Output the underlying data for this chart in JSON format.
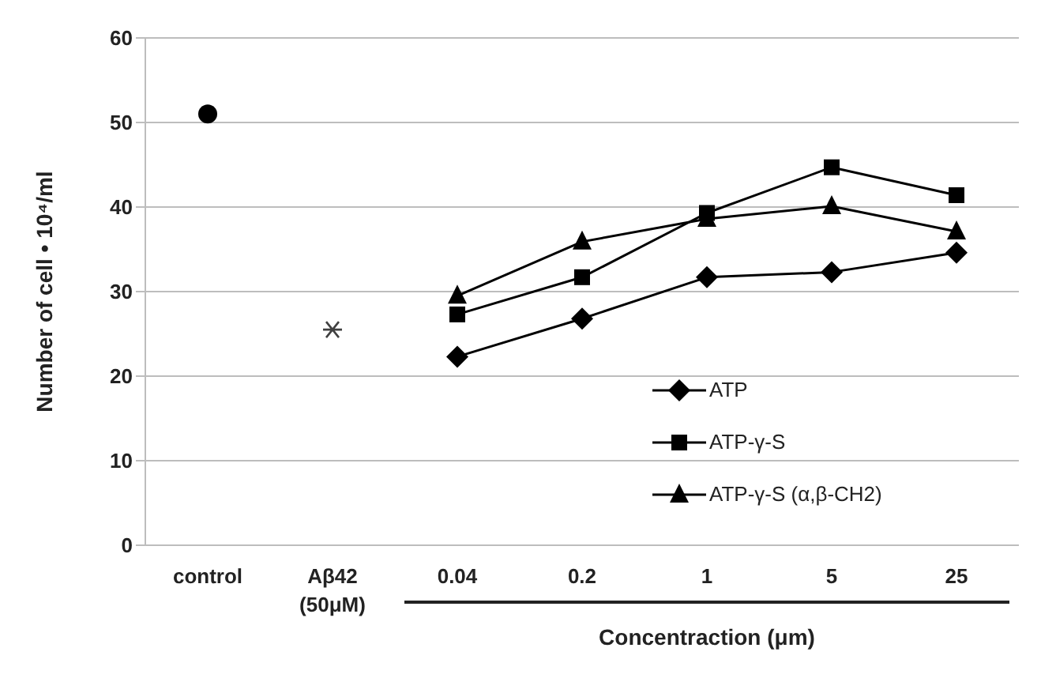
{
  "chart_data": {
    "type": "line",
    "ylabel": "Number of cell • 10⁴/ml",
    "xlabel": "Concentraction (μm)",
    "categories": [
      "control",
      "Aβ42 (50μM)",
      "0.04",
      "0.2",
      "1",
      "5",
      "25"
    ],
    "ylim": [
      0,
      60
    ],
    "yticks": [
      0,
      10,
      20,
      30,
      40,
      50,
      60
    ],
    "grid": "y",
    "legend": "bottom right",
    "series": [
      {
        "type": "scatter",
        "marker": "circle",
        "color": "#000000",
        "values": [
          51,
          null,
          null,
          null,
          null,
          null,
          null
        ]
      },
      {
        "type": "scatter",
        "marker": "cross",
        "color": "#404040",
        "values": [
          null,
          25.5,
          null,
          null,
          null,
          null,
          null
        ]
      },
      {
        "name": "ATP",
        "marker": "diamond",
        "color": "#000000",
        "values": [
          null,
          null,
          22.3,
          26.8,
          31.7,
          32.3,
          34.6
        ]
      },
      {
        "name": "ATP-γ-S",
        "marker": "square",
        "color": "#000000",
        "values": [
          null,
          null,
          27.3,
          31.7,
          39.3,
          44.7,
          41.4
        ]
      },
      {
        "name": "ATP-γ-S (α,β-CH2)",
        "marker": "triangle",
        "color": "#000000",
        "values": [
          null,
          null,
          29.5,
          35.9,
          38.6,
          40.1,
          37.1
        ]
      }
    ]
  }
}
